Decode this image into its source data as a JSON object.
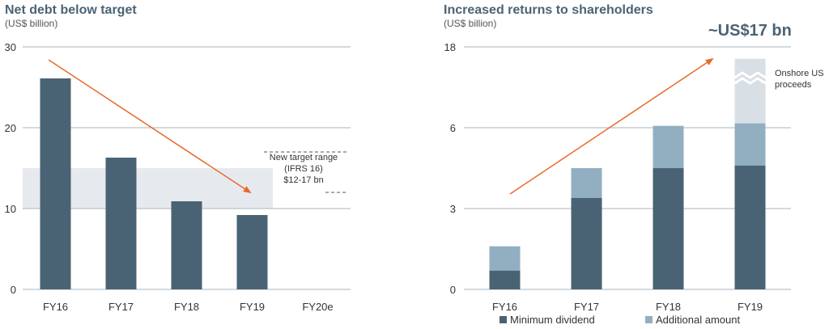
{
  "chart_data": [
    {
      "type": "bar",
      "title": "Net debt below target",
      "subtitle": "(US$ billion)",
      "categories": [
        "FY16",
        "FY17",
        "FY18",
        "FY19",
        "FY20e"
      ],
      "values": [
        26.1,
        16.3,
        10.9,
        9.2,
        null
      ],
      "y_ticks": [
        0,
        10,
        20,
        30
      ],
      "ylim": [
        0,
        30
      ],
      "grid": true,
      "target_range": {
        "low": 12,
        "high": 17,
        "label_lines": [
          "New target range",
          "(IFRS 16)",
          "$12-17 bn"
        ]
      },
      "colors": {
        "bar": "#4a6374",
        "band": "#e6eaee",
        "arrow": "#e8692a",
        "grid": "#a9b4bc"
      }
    },
    {
      "type": "bar",
      "title": "Increased returns to shareholders",
      "subtitle": "(US$ billion)",
      "categories": [
        "FY16",
        "FY17",
        "FY18",
        "FY19"
      ],
      "series": [
        {
          "name": "Minimum dividend",
          "values": [
            0.7,
            3.4,
            4.5,
            4.6
          ]
        },
        {
          "name": "Additional amount",
          "values": [
            0.9,
            1.1,
            1.8,
            2.1
          ]
        },
        {
          "values": [
            0,
            0,
            0,
            10.3
          ]
        }
      ],
      "y_ticks": [
        "0",
        "3",
        "6",
        "18"
      ],
      "axis_break": true,
      "annotations": {
        "headline": "~US$17 bn",
        "onshore_lines": [
          "Onshore US",
          "proceeds"
        ]
      },
      "legend_position": "bottom",
      "colors": {
        "minimum": "#4a6374",
        "additional": "#91afc0",
        "onshore": "#d8dfe5",
        "arrow": "#e8692a",
        "grid": "#a9b4bc"
      }
    }
  ]
}
